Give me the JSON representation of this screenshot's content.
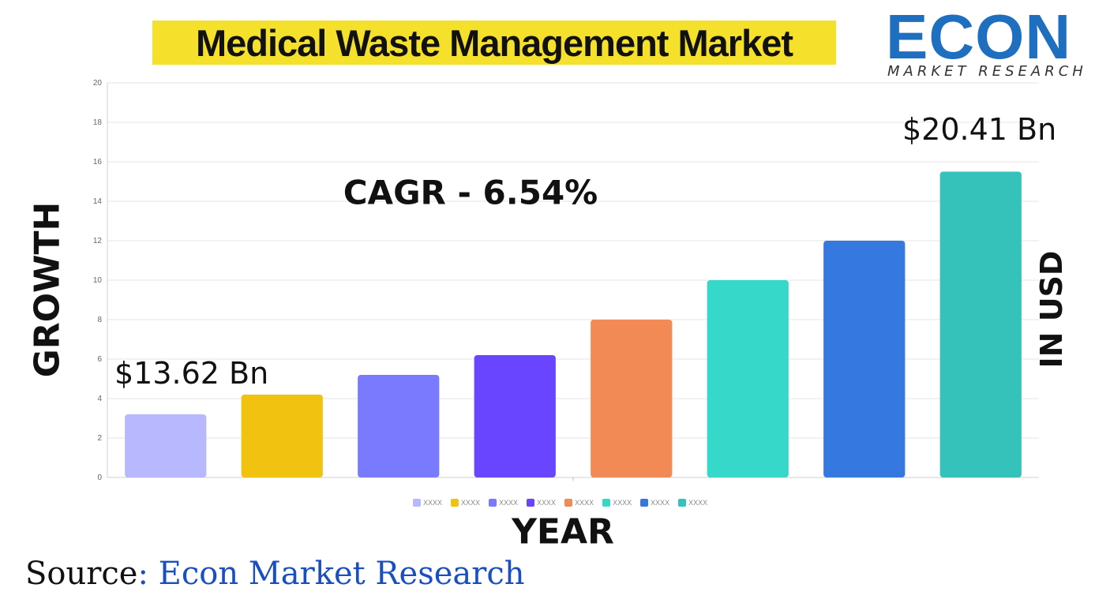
{
  "title": "Medical Waste Management Market",
  "logo": {
    "word": "ECON",
    "sub": "MARKET RESEARCH"
  },
  "annotations": {
    "cagr": "CAGR  - 6.54%",
    "start_value": "$13.62 Bn",
    "end_value": "$20.41 Bn"
  },
  "source": {
    "prefix": "Source",
    "name": ": Econ Market Research"
  },
  "colors": {
    "title_highlight": "#f5e12c",
    "logo_blue": "#1f6fc0",
    "source_blue": "#1a4fc2"
  },
  "chart_data": {
    "type": "bar",
    "categories": [
      "XXXX",
      "XXXX",
      "XXXX",
      "XXXX",
      "XXXX",
      "XXXX",
      "XXXX",
      "XXXX"
    ],
    "values": [
      3.2,
      4.2,
      5.2,
      6.2,
      8,
      10,
      12,
      15.5
    ],
    "bar_colors": [
      "#b8b8ff",
      "#f2c211",
      "#7a7aff",
      "#6a45ff",
      "#f28a55",
      "#36d9c9",
      "#3579e0",
      "#35c2bb"
    ],
    "xlabel": "YEAR",
    "ylabel": "GROWTH",
    "ylabel_right": "IN USD",
    "ylim": [
      0,
      20
    ],
    "yticks": [
      0,
      2,
      4,
      6,
      8,
      10,
      12,
      14,
      16,
      18,
      20
    ],
    "grid": true,
    "legend_position": "bottom"
  }
}
